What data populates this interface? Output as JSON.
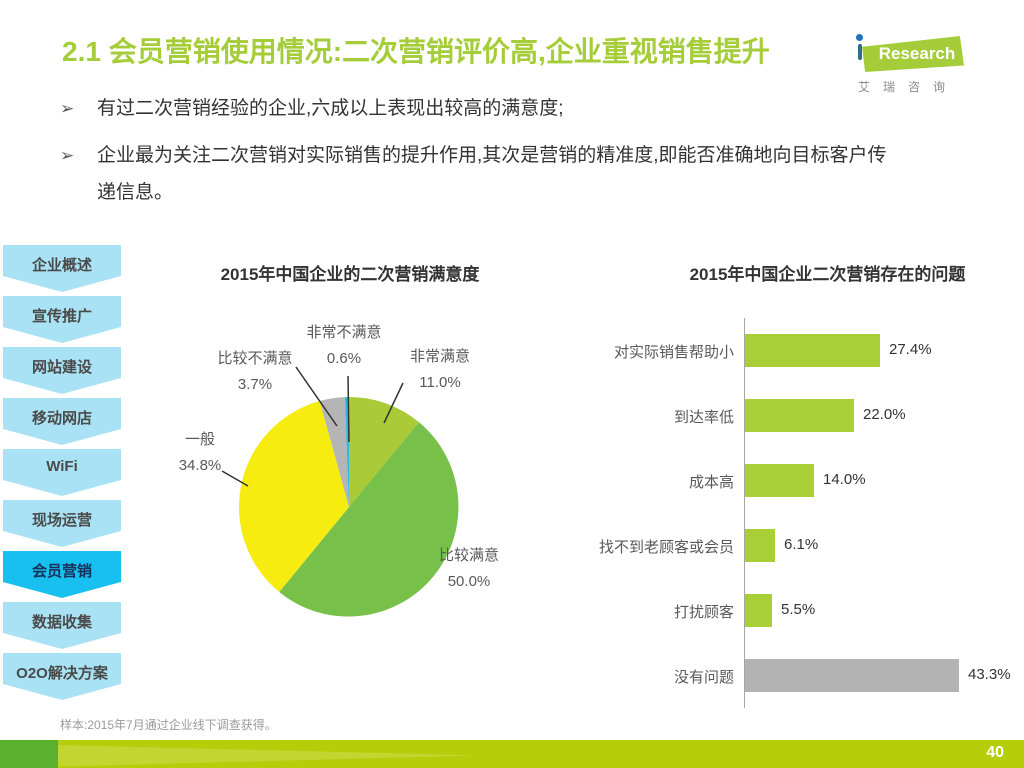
{
  "page": {
    "title": "2.1 会员营销使用情况:二次营销评价高,企业重视销售提升",
    "page_number": "40",
    "footnote": "样本:2015年7月通过企业线下调查获得。"
  },
  "logo": {
    "brand_rest": "Research",
    "subtitle": "艾瑞咨询",
    "brand_color": "#a5cd39"
  },
  "bullets": [
    {
      "marker": "➢",
      "text": "有过二次营销经验的企业,六成以上表现出较高的满意度;"
    },
    {
      "marker": "➢",
      "text": "企业最为关注二次营销对实际销售的提升作用,其次是营销的精准度,即能否准确地向目标客户传递信息。"
    }
  ],
  "sidebar": {
    "items": [
      {
        "label": "企业概述",
        "selected": false
      },
      {
        "label": "宣传推广",
        "selected": false
      },
      {
        "label": "网站建设",
        "selected": false
      },
      {
        "label": "移动网店",
        "selected": false
      },
      {
        "label": "WiFi",
        "selected": false
      },
      {
        "label": "现场运营",
        "selected": false
      },
      {
        "label": "会员营销",
        "selected": true
      },
      {
        "label": "数据收集",
        "selected": false
      },
      {
        "label": "O2O解决方案",
        "selected": false
      }
    ],
    "normal_color": "#a9e2f4",
    "selected_color": "#17c0ef"
  },
  "chart_data": [
    {
      "type": "pie",
      "title": "2015年中国企业的二次营销满意度",
      "direction": "clockwise",
      "start_angle_deg": 0,
      "slices": [
        {
          "label": "非常满意",
          "value": 11.0,
          "value_label": "11.0%",
          "color": "#aacb37"
        },
        {
          "label": "比较满意",
          "value": 50.0,
          "value_label": "50.0%",
          "color": "#77c04a"
        },
        {
          "label": "一般",
          "value": 34.8,
          "value_label": "34.8%",
          "color": "#f7ec0f"
        },
        {
          "label": "比较不满意",
          "value": 3.7,
          "value_label": "3.7%",
          "color": "#b5b5b5"
        },
        {
          "label": "非常不满意",
          "value": 0.6,
          "value_label": "0.6%",
          "color": "#29b8ea"
        }
      ]
    },
    {
      "type": "bar",
      "title": "2015年中国企业二次营销存在的问题",
      "orientation": "horizontal",
      "xlim": [
        0,
        50
      ],
      "categories": [
        "对实际销售帮助小",
        "到达率低",
        "成本高",
        "找不到老顾客或会员",
        "打扰顾客",
        "没有问题"
      ],
      "values": [
        27.4,
        22.0,
        14.0,
        6.1,
        5.5,
        43.3
      ],
      "value_labels": [
        "27.4%",
        "22.0%",
        "14.0%",
        "6.1%",
        "5.5%",
        "43.3%"
      ],
      "bar_colors": [
        "#a8d036",
        "#a8d036",
        "#a8d036",
        "#a8d036",
        "#a8d036",
        "#b3b3b3"
      ]
    }
  ]
}
